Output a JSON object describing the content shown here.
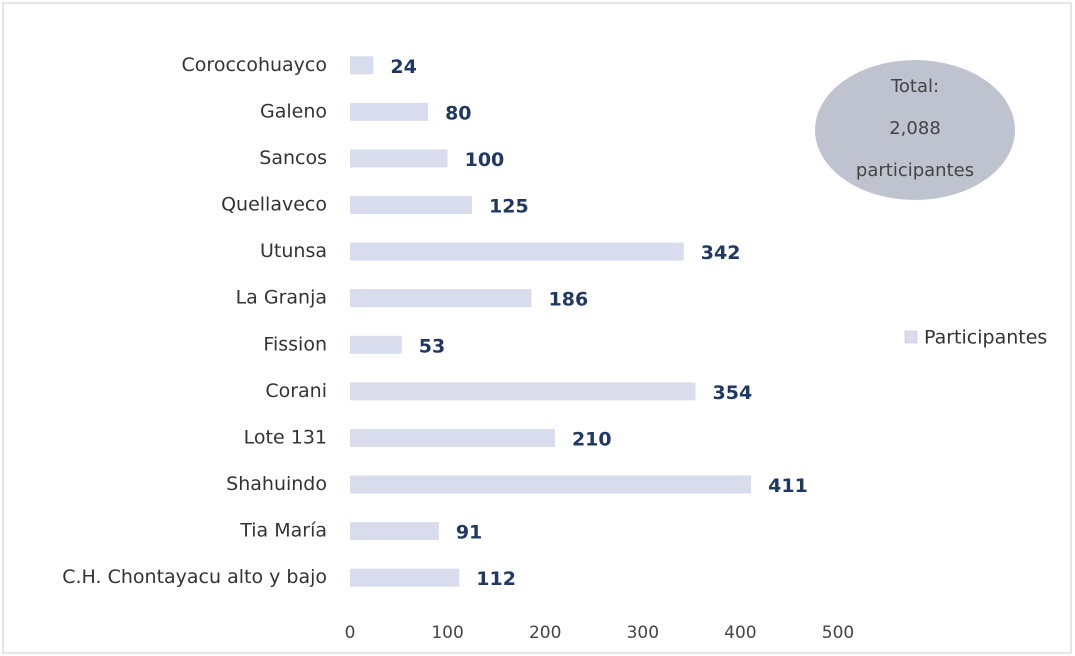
{
  "chart_data": {
    "type": "bar",
    "orientation": "horizontal",
    "categories": [
      "Coroccohuayco",
      "Galeno",
      "Sancos",
      "Quellaveco",
      "Utunsa",
      "La Granja",
      "Fission",
      "Corani",
      "Lote 131",
      "Shahuindo",
      "Tia María",
      "C.H. Chontayacu alto y bajo"
    ],
    "series": [
      {
        "name": "Participantes",
        "color": "#d9dcec",
        "values": [
          24,
          80,
          100,
          125,
          342,
          186,
          53,
          354,
          210,
          411,
          91,
          112
        ]
      }
    ],
    "xlim": [
      0,
      500
    ],
    "xticks": [
      0,
      100,
      200,
      300,
      400,
      500
    ],
    "annotation": [
      "Total:",
      "2,088",
      "participantes"
    ],
    "legend": "right"
  }
}
